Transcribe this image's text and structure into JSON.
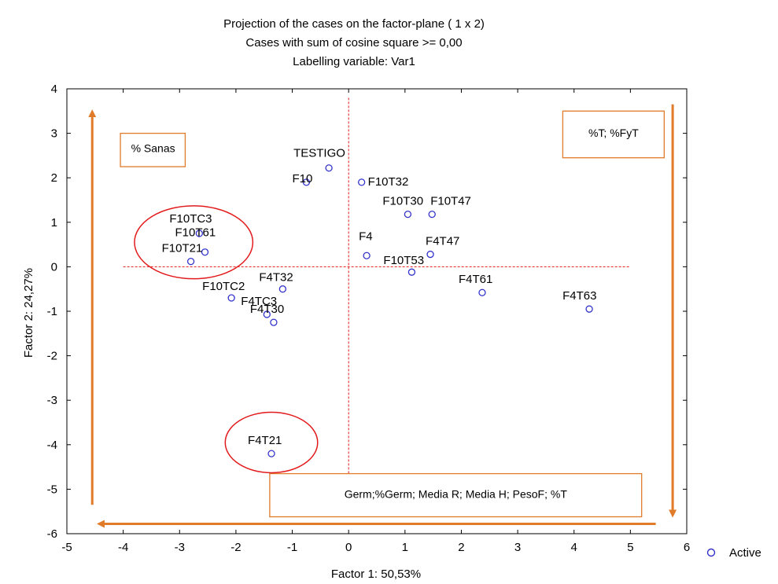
{
  "chart_data": {
    "type": "scatter",
    "title": "Projection of the cases on the factor-plane (  1 x   2)",
    "subtitle": "Cases with sum of cosine square >=  0,00",
    "subtitle2": "Labelling variable: Var1",
    "xlabel": "Factor 1: 50,53%",
    "ylabel": "Factor 2: 24,27%",
    "xlim": [
      -5,
      6
    ],
    "ylim": [
      -6,
      4
    ],
    "xticks": [
      "-5",
      "-4",
      "-3",
      "-2",
      "-1",
      "0",
      "1",
      "2",
      "3",
      "4",
      "5",
      "6"
    ],
    "yticks": [
      "4",
      "3",
      "2",
      "1",
      "0",
      "-1",
      "-2",
      "-3",
      "-4",
      "-5",
      "-6"
    ],
    "legend": {
      "label": "Active",
      "position": "bottom-right",
      "color": "#3333cc"
    },
    "point_color": "#3333cc",
    "grid": false,
    "points": [
      {
        "label": "TESTIGO",
        "x": -0.35,
        "y": 2.22
      },
      {
        "label": "F10",
        "x": -0.75,
        "y": 1.9
      },
      {
        "label": "F10T32",
        "x": 0.23,
        "y": 1.9
      },
      {
        "label": "F10T30",
        "x": 1.05,
        "y": 1.18
      },
      {
        "label": "F10T47",
        "x": 1.48,
        "y": 1.18
      },
      {
        "label": "F10TC3",
        "x": -2.65,
        "y": 0.75
      },
      {
        "label": "F10T61",
        "x": -2.55,
        "y": 0.33
      },
      {
        "label": "F10T21",
        "x": -2.8,
        "y": 0.12
      },
      {
        "label": "F4",
        "x": 0.32,
        "y": 0.25
      },
      {
        "label": "F4T47",
        "x": 1.45,
        "y": 0.28
      },
      {
        "label": "F10T53",
        "x": 1.12,
        "y": -0.12
      },
      {
        "label": "F4T61",
        "x": 2.37,
        "y": -0.58
      },
      {
        "label": "F4T63",
        "x": 4.27,
        "y": -0.95
      },
      {
        "label": "F4T32",
        "x": -1.17,
        "y": -0.5
      },
      {
        "label": "F10TC2",
        "x": -2.08,
        "y": -0.7
      },
      {
        "label": "F4TC3",
        "x": -1.45,
        "y": -1.07
      },
      {
        "label": "F4T30",
        "x": -1.33,
        "y": -1.25
      },
      {
        "label": "F4T21",
        "x": -1.37,
        "y": -4.2
      }
    ],
    "reference_lines": {
      "color": "#e31a1c",
      "x": 0,
      "y": 0
    },
    "annotations": {
      "accent": "#e07b2a",
      "circle_color": "#e31a1c",
      "boxes": [
        {
          "id": "sanas",
          "text": "% Sanas"
        },
        {
          "id": "tfyt",
          "text": "%T; %FyT"
        },
        {
          "id": "germ",
          "text": "Germ;%Germ; Media R; Media H; PesoF; %T"
        }
      ]
    }
  }
}
